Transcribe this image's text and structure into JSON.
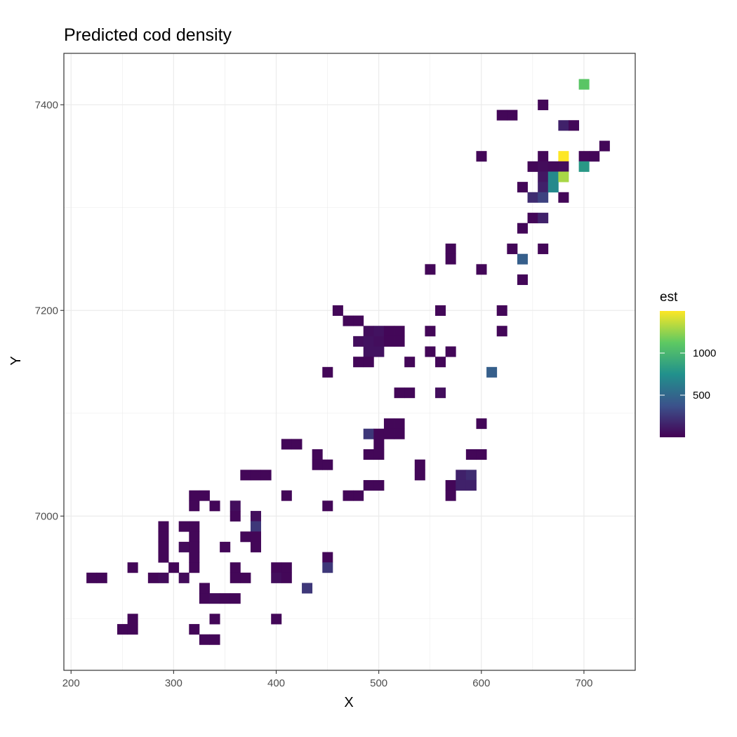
{
  "chart_data": {
    "type": "heatmap",
    "title": "Predicted cod density",
    "xlabel": "X",
    "ylabel": "Y",
    "xlim": [
      193,
      750
    ],
    "ylim": [
      6850,
      7450
    ],
    "xticks": [
      200,
      300,
      400,
      500,
      600,
      700
    ],
    "yticks": [
      7000,
      7200,
      7400
    ],
    "grid": true,
    "cell_size": [
      10,
      10
    ],
    "colormap": [
      "#440154",
      "#3b528b",
      "#21918c",
      "#5ec962",
      "#fde725"
    ],
    "color_range": [
      0,
      1500
    ],
    "legend": {
      "title": "est",
      "placement": "right",
      "ticks": [
        500,
        1000
      ]
    },
    "cells": [
      [
        700,
        7420,
        1100
      ],
      [
        660,
        7400,
        30
      ],
      [
        620,
        7390,
        30
      ],
      [
        630,
        7390,
        30
      ],
      [
        680,
        7380,
        150
      ],
      [
        690,
        7380,
        30
      ],
      [
        720,
        7360,
        30
      ],
      [
        600,
        7350,
        30
      ],
      [
        660,
        7350,
        30
      ],
      [
        680,
        7350,
        1500
      ],
      [
        700,
        7350,
        30
      ],
      [
        710,
        7350,
        30
      ],
      [
        650,
        7340,
        30
      ],
      [
        660,
        7340,
        50
      ],
      [
        670,
        7340,
        40
      ],
      [
        680,
        7340,
        50
      ],
      [
        700,
        7340,
        800
      ],
      [
        660,
        7330,
        100
      ],
      [
        670,
        7330,
        700
      ],
      [
        680,
        7330,
        1300
      ],
      [
        640,
        7320,
        30
      ],
      [
        660,
        7320,
        150
      ],
      [
        670,
        7320,
        700
      ],
      [
        650,
        7310,
        200
      ],
      [
        660,
        7310,
        300
      ],
      [
        680,
        7310,
        30
      ],
      [
        650,
        7290,
        30
      ],
      [
        660,
        7290,
        150
      ],
      [
        640,
        7280,
        30
      ],
      [
        570,
        7260,
        30
      ],
      [
        630,
        7260,
        30
      ],
      [
        660,
        7260,
        30
      ],
      [
        570,
        7250,
        30
      ],
      [
        640,
        7250,
        450
      ],
      [
        550,
        7240,
        30
      ],
      [
        600,
        7240,
        30
      ],
      [
        640,
        7230,
        30
      ],
      [
        460,
        7200,
        30
      ],
      [
        560,
        7200,
        30
      ],
      [
        620,
        7200,
        30
      ],
      [
        470,
        7190,
        30
      ],
      [
        480,
        7190,
        30
      ],
      [
        490,
        7180,
        60
      ],
      [
        500,
        7180,
        80
      ],
      [
        510,
        7180,
        30
      ],
      [
        520,
        7180,
        30
      ],
      [
        550,
        7180,
        30
      ],
      [
        620,
        7180,
        30
      ],
      [
        480,
        7170,
        60
      ],
      [
        490,
        7170,
        80
      ],
      [
        500,
        7170,
        60
      ],
      [
        510,
        7170,
        30
      ],
      [
        520,
        7170,
        30
      ],
      [
        490,
        7160,
        80
      ],
      [
        500,
        7160,
        80
      ],
      [
        550,
        7160,
        30
      ],
      [
        570,
        7160,
        30
      ],
      [
        480,
        7150,
        30
      ],
      [
        490,
        7150,
        30
      ],
      [
        530,
        7150,
        30
      ],
      [
        560,
        7150,
        30
      ],
      [
        450,
        7140,
        30
      ],
      [
        610,
        7140,
        450
      ],
      [
        520,
        7120,
        30
      ],
      [
        530,
        7120,
        30
      ],
      [
        560,
        7120,
        60
      ],
      [
        510,
        7090,
        30
      ],
      [
        520,
        7090,
        30
      ],
      [
        600,
        7090,
        30
      ],
      [
        490,
        7080,
        250
      ],
      [
        500,
        7080,
        30
      ],
      [
        510,
        7080,
        30
      ],
      [
        520,
        7080,
        30
      ],
      [
        410,
        7070,
        30
      ],
      [
        420,
        7070,
        30
      ],
      [
        500,
        7070,
        30
      ],
      [
        440,
        7060,
        30
      ],
      [
        490,
        7060,
        30
      ],
      [
        500,
        7060,
        30
      ],
      [
        590,
        7060,
        30
      ],
      [
        600,
        7060,
        30
      ],
      [
        440,
        7050,
        30
      ],
      [
        450,
        7050,
        30
      ],
      [
        540,
        7050,
        30
      ],
      [
        370,
        7040,
        30
      ],
      [
        380,
        7040,
        30
      ],
      [
        390,
        7040,
        30
      ],
      [
        540,
        7040,
        30
      ],
      [
        580,
        7040,
        150
      ],
      [
        590,
        7040,
        200
      ],
      [
        490,
        7030,
        30
      ],
      [
        500,
        7030,
        30
      ],
      [
        570,
        7030,
        30
      ],
      [
        580,
        7030,
        150
      ],
      [
        590,
        7030,
        150
      ],
      [
        320,
        7020,
        30
      ],
      [
        330,
        7020,
        30
      ],
      [
        410,
        7020,
        30
      ],
      [
        470,
        7020,
        30
      ],
      [
        480,
        7020,
        30
      ],
      [
        570,
        7020,
        30
      ],
      [
        320,
        7010,
        30
      ],
      [
        340,
        7010,
        30
      ],
      [
        360,
        7010,
        60
      ],
      [
        450,
        7010,
        30
      ],
      [
        360,
        7000,
        30
      ],
      [
        380,
        7000,
        60
      ],
      [
        290,
        6990,
        30
      ],
      [
        310,
        6990,
        30
      ],
      [
        320,
        6990,
        30
      ],
      [
        380,
        6990,
        250
      ],
      [
        290,
        6980,
        30
      ],
      [
        320,
        6980,
        30
      ],
      [
        370,
        6980,
        30
      ],
      [
        380,
        6980,
        30
      ],
      [
        290,
        6970,
        30
      ],
      [
        310,
        6970,
        50
      ],
      [
        320,
        6970,
        30
      ],
      [
        350,
        6970,
        30
      ],
      [
        380,
        6970,
        30
      ],
      [
        290,
        6960,
        30
      ],
      [
        320,
        6960,
        30
      ],
      [
        450,
        6960,
        30
      ],
      [
        260,
        6950,
        30
      ],
      [
        300,
        6950,
        30
      ],
      [
        320,
        6950,
        30
      ],
      [
        360,
        6950,
        30
      ],
      [
        400,
        6950,
        30
      ],
      [
        410,
        6950,
        30
      ],
      [
        450,
        6950,
        250
      ],
      [
        220,
        6940,
        30
      ],
      [
        230,
        6940,
        30
      ],
      [
        280,
        6940,
        30
      ],
      [
        290,
        6940,
        50
      ],
      [
        310,
        6940,
        50
      ],
      [
        360,
        6940,
        30
      ],
      [
        370,
        6940,
        30
      ],
      [
        400,
        6940,
        60
      ],
      [
        410,
        6940,
        30
      ],
      [
        330,
        6930,
        30
      ],
      [
        430,
        6930,
        250
      ],
      [
        330,
        6920,
        30
      ],
      [
        340,
        6920,
        50
      ],
      [
        350,
        6920,
        30
      ],
      [
        360,
        6920,
        30
      ],
      [
        260,
        6900,
        30
      ],
      [
        340,
        6900,
        30
      ],
      [
        400,
        6900,
        30
      ],
      [
        250,
        6890,
        30
      ],
      [
        260,
        6890,
        30
      ],
      [
        320,
        6890,
        30
      ],
      [
        330,
        6880,
        30
      ],
      [
        340,
        6880,
        30
      ]
    ]
  }
}
